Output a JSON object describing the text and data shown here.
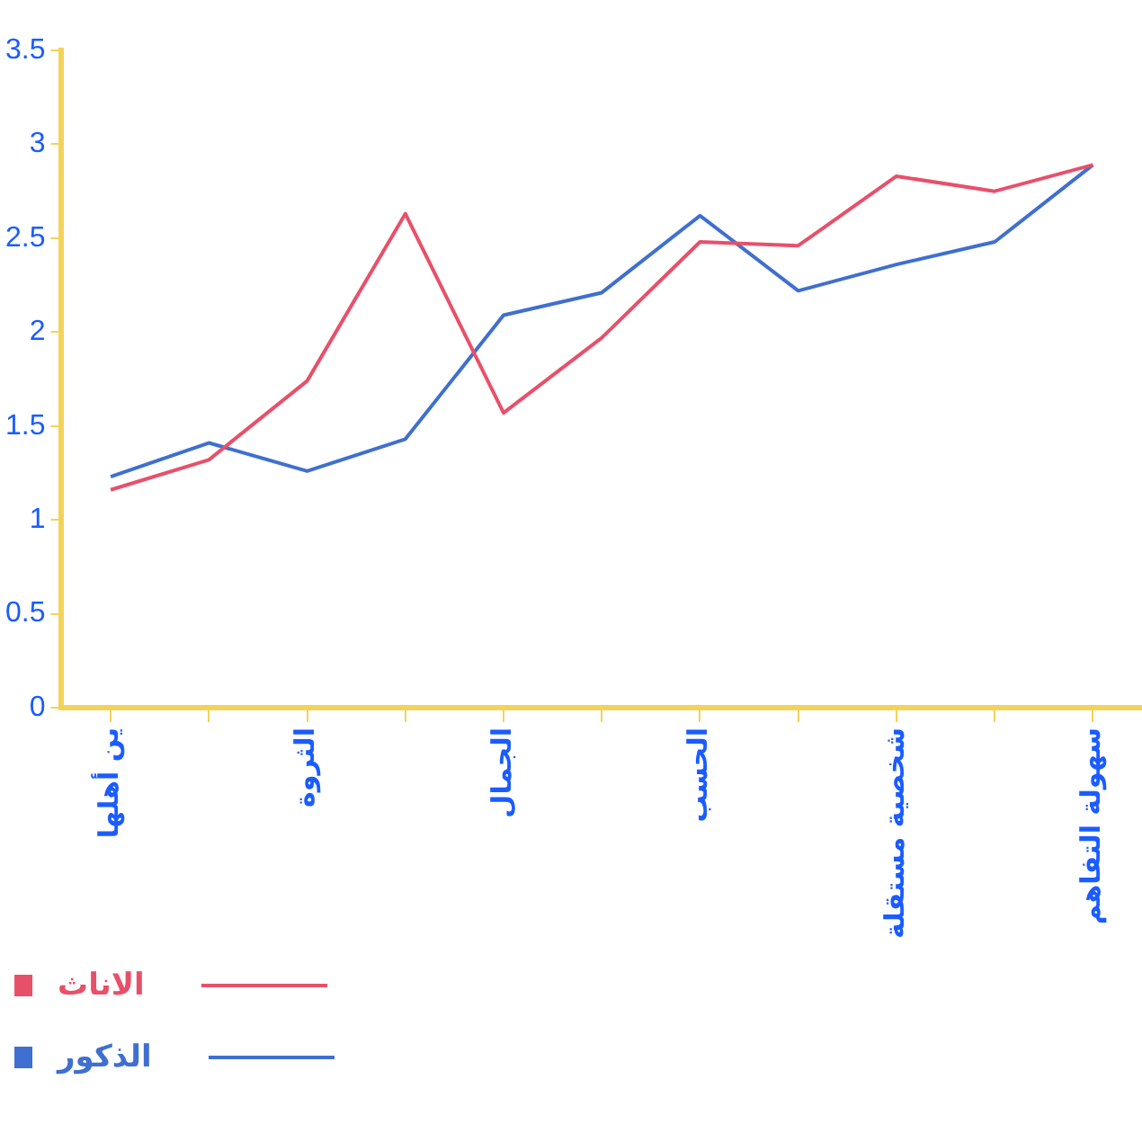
{
  "chart_data": {
    "type": "line",
    "categories": [
      "ين أهلها",
      null,
      "الثروة",
      null,
      "الجمال",
      null,
      "الحسب",
      null,
      "شخصية مستقلة",
      null,
      "سهولة التفاهم"
    ],
    "series": [
      {
        "name": "الاناث",
        "color": "#e8506a",
        "values": [
          1.16,
          1.32,
          1.74,
          2.63,
          1.57,
          1.97,
          2.48,
          2.46,
          2.83,
          2.75,
          2.89
        ]
      },
      {
        "name": "الذكور",
        "color": "#3f6fd0",
        "values": [
          1.23,
          1.41,
          1.26,
          1.43,
          2.09,
          2.21,
          2.62,
          2.22,
          2.36,
          2.48,
          2.89
        ]
      }
    ],
    "ylim": [
      0,
      3.5
    ],
    "yticks": [
      0,
      0.5,
      1,
      1.5,
      2,
      2.5,
      3,
      3.5
    ],
    "grid": false,
    "legend": "bottom left",
    "marker": "none",
    "line_style": "solid"
  }
}
